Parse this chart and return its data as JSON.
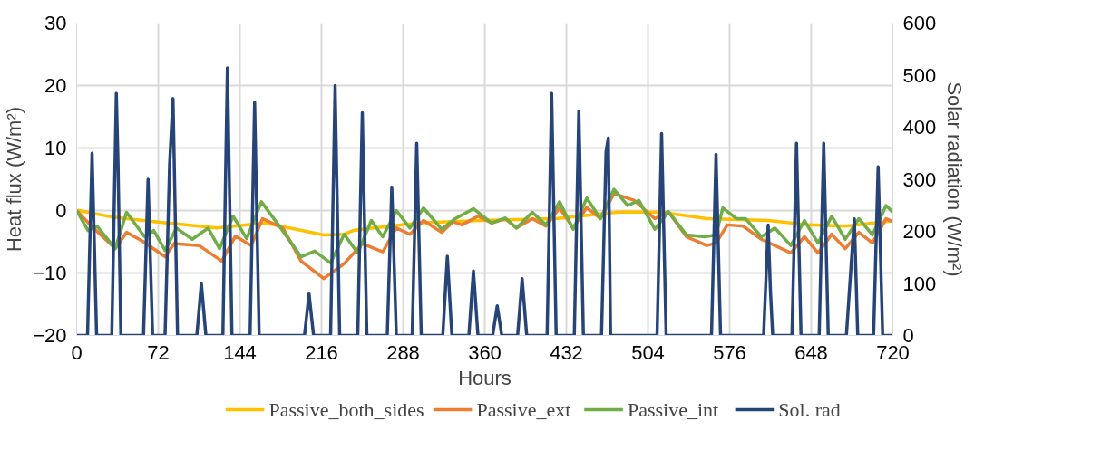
{
  "chart_data": {
    "type": "line",
    "xlabel": "Hours",
    "ylabel": "Heat flux (W/m²)",
    "y2label": "Solar radiation (W/m²)",
    "xlim": [
      0,
      720
    ],
    "xticks": [
      0,
      72,
      144,
      216,
      288,
      360,
      432,
      504,
      576,
      648,
      720
    ],
    "ylim": [
      -20,
      30
    ],
    "yticks": [
      -20,
      -10,
      0,
      10,
      20,
      30
    ],
    "y2lim": [
      0,
      600
    ],
    "y2ticks": [
      0,
      100,
      200,
      300,
      400,
      500,
      600
    ],
    "grid": true,
    "legend": "bottom",
    "marker": "none",
    "line_style": "solid",
    "series": [
      {
        "name": "Passive_both_sides",
        "color": "#ffc000",
        "x": [
          0,
          2,
          30,
          70,
          124,
          166,
          218,
          236,
          244,
          262,
          302,
          356,
          422,
          476,
          484,
          516,
          556,
          610,
          646,
          678,
          718
        ],
        "values": [
          0,
          0,
          -1.0,
          -1.8,
          -2.8,
          -2.0,
          -3.9,
          -3.8,
          -3.2,
          -2.8,
          -2.0,
          -1.6,
          -1.3,
          -0.3,
          -0.2,
          -0.3,
          -1.3,
          -1.6,
          -2.3,
          -2.5,
          -1.7
        ]
      },
      {
        "name": "Passive_ext",
        "color": "#ed7d31",
        "x": [
          0,
          12,
          34,
          44,
          58,
          78,
          86,
          108,
          128,
          140,
          154,
          164,
          182,
          198,
          218,
          236,
          252,
          270,
          282,
          294,
          306,
          322,
          332,
          340,
          354,
          366,
          378,
          388,
          402,
          414,
          426,
          438,
          450,
          462,
          474,
          492,
          510,
          522,
          538,
          556,
          564,
          574,
          588,
          604,
          630,
          642,
          654,
          666,
          678,
          690,
          702,
          714,
          720
        ],
        "values": [
          0,
          -2.3,
          -6.1,
          -3.5,
          -4.9,
          -7.4,
          -5.3,
          -5.6,
          -8.1,
          -4.1,
          -5.6,
          -1.3,
          -2.8,
          -8.1,
          -10.9,
          -8.5,
          -5.3,
          -6.6,
          -2.8,
          -3.8,
          -1.6,
          -3.5,
          -1.8,
          -2.3,
          -0.9,
          -2.0,
          -1.3,
          -2.8,
          -1.3,
          -2.5,
          0.4,
          -2.8,
          0.5,
          -1.3,
          2.7,
          1.6,
          -1.3,
          -0.2,
          -4.2,
          -5.6,
          -5.2,
          -2.3,
          -2.5,
          -4.6,
          -6.8,
          -4.2,
          -6.8,
          -3.8,
          -6.1,
          -3.5,
          -5.2,
          -1.3,
          -1.8
        ]
      },
      {
        "name": "Passive_int",
        "color": "#70ad47",
        "x": [
          0,
          10,
          18,
          34,
          44,
          60,
          68,
          78,
          88,
          102,
          116,
          126,
          138,
          150,
          163,
          178,
          198,
          210,
          224,
          236,
          248,
          260,
          270,
          282,
          294,
          306,
          322,
          334,
          350,
          366,
          378,
          388,
          402,
          414,
          426,
          438,
          450,
          462,
          474,
          486,
          496,
          510,
          522,
          538,
          554,
          564,
          570,
          582,
          590,
          604,
          616,
          630,
          642,
          654,
          666,
          678,
          690,
          702,
          714,
          720
        ],
        "values": [
          0,
          -3.2,
          -2.5,
          -6.1,
          -0.3,
          -4.2,
          -3.2,
          -6.4,
          -2.8,
          -4.6,
          -2.8,
          -6.1,
          -0.9,
          -4.5,
          1.4,
          -2.3,
          -7.4,
          -6.5,
          -8.4,
          -3.8,
          -6.8,
          -1.6,
          -4.2,
          0.0,
          -2.8,
          0.4,
          -3.0,
          -1.3,
          0.3,
          -2.0,
          -1.2,
          -2.8,
          -0.3,
          -2.3,
          1.4,
          -3.0,
          2.0,
          -1.3,
          3.4,
          0.8,
          1.6,
          -3.0,
          -0.2,
          -3.9,
          -4.2,
          -3.9,
          0.4,
          -1.3,
          -1.3,
          -4.2,
          -2.8,
          -5.6,
          -1.6,
          -5.2,
          -0.9,
          -4.6,
          -1.3,
          -3.9,
          0.8,
          -0.3
        ]
      },
      {
        "name": "Sol. rad",
        "color": "#264478",
        "axis": "y2",
        "x": [
          0,
          9.6,
          13.6,
          17.6,
          31,
          35,
          36.5,
          39,
          59,
          63,
          67,
          78,
          82,
          85,
          89,
          106,
          110,
          114,
          129,
          133,
          137,
          153,
          157,
          161,
          201,
          205,
          209,
          224,
          228,
          232,
          248,
          252,
          256,
          274,
          278,
          282,
          296,
          300,
          304,
          323,
          327,
          331,
          346,
          350,
          354,
          367,
          371,
          375,
          389,
          393,
          397,
          415,
          419,
          423,
          439,
          443,
          447,
          463,
          467,
          469,
          471,
          512,
          516,
          520,
          560,
          564,
          568,
          606,
          610,
          612,
          614,
          631,
          635,
          639,
          655,
          659,
          663,
          679,
          683,
          686,
          689,
          703,
          707,
          711,
          720
        ],
        "values": [
          0,
          0,
          350,
          0,
          0,
          465,
          330,
          0,
          0,
          300,
          0,
          0,
          328,
          455,
          0,
          0,
          100,
          0,
          0,
          514,
          0,
          0,
          448,
          0,
          0,
          80,
          0,
          0,
          480,
          0,
          0,
          428,
          0,
          0,
          285,
          0,
          0,
          369,
          0,
          0,
          152,
          0,
          0,
          124,
          0,
          0,
          57,
          0,
          0,
          109,
          0,
          0,
          465,
          0,
          0,
          431,
          0,
          0,
          353,
          379,
          0,
          0,
          388,
          0,
          0,
          348,
          0,
          0,
          212,
          86,
          0,
          0,
          369,
          0,
          0,
          369,
          0,
          0,
          129,
          224,
          0,
          0,
          324,
          0,
          0
        ]
      }
    ]
  }
}
